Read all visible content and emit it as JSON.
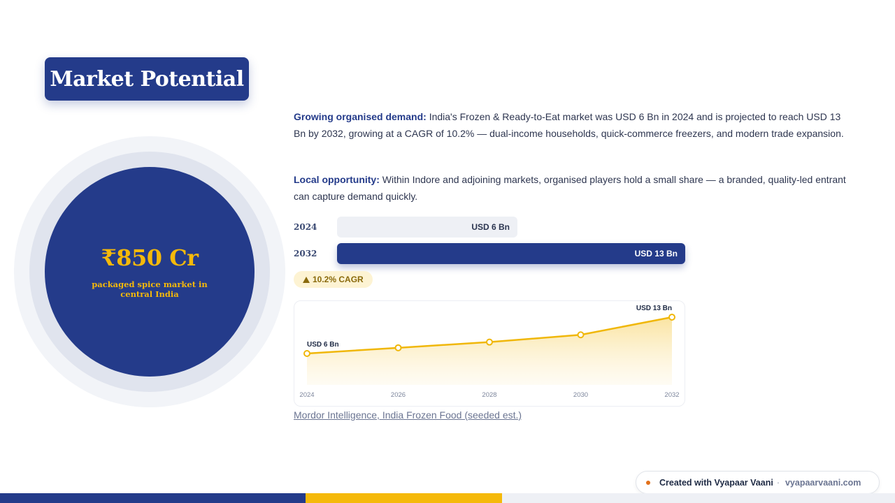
{
  "title": "Market Potential",
  "stat": {
    "value": "₹850 Cr",
    "caption": "packaged spice market in central India"
  },
  "paragraphs": [
    {
      "label": "Growing organised demand:",
      "text": "India's Frozen & Ready-to-Eat market was USD 6 Bn in 2024 and is projected to reach USD 13 Bn by 2032, growing at a CAGR of 10.2% — dual-income households, quick-commerce freezers, and modern trade expansion."
    },
    {
      "label": "Local opportunity:",
      "text": "Within Indore and adjoining markets, organised players hold a small share — a branded, quality-led entrant can capture demand quickly."
    }
  ],
  "bars": [
    {
      "year": "2024",
      "label": "USD 6 Bn",
      "value": 6
    },
    {
      "year": "2032",
      "label": "USD 13 Bn",
      "value": 13
    }
  ],
  "cagr": {
    "icon": "triangle-up-icon",
    "text": "10.2% CAGR"
  },
  "chart_data": {
    "type": "area",
    "x": [
      2024,
      2026,
      2028,
      2030,
      2032
    ],
    "xticks": [
      "2024",
      "2026",
      "2028",
      "2030",
      "2032"
    ],
    "values": [
      6,
      7.1,
      8.2,
      9.6,
      13
    ],
    "annotations": [
      {
        "x": 2024,
        "label": "USD 6 Bn"
      },
      {
        "x": 2032,
        "label": "USD 13 Bn"
      }
    ],
    "grid": false,
    "line_color": "#f0b70a",
    "fill_color": "#fbe3a0"
  },
  "source": "Mordor Intelligence, India Frozen Food (seeded est.)",
  "credit": {
    "text": "Created with Vyapaar Vaani",
    "separator": "·",
    "site": "vyapaarvaani.com"
  },
  "colors": {
    "primary": "#243b8a",
    "accent": "#f5b90a",
    "muted": "#eef0f5",
    "credit_dot": "#e2701a"
  }
}
